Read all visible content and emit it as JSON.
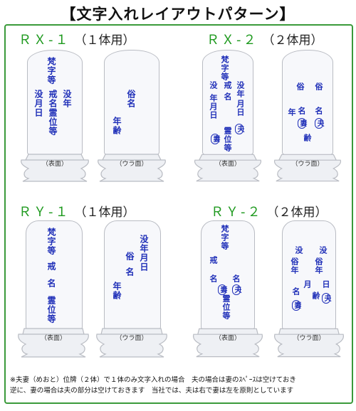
{
  "title": "【文字入れレイアウトパターン】",
  "patterns": [
    {
      "code": "ＲＸ-１",
      "count": "（１体用）"
    },
    {
      "code": "ＲＸ-２",
      "count": "（２体用）"
    },
    {
      "code": "ＲＹ-１",
      "count": "（１体用）"
    },
    {
      "code": "ＲＹ-２",
      "count": "（２体用）"
    }
  ],
  "face_labels": {
    "front": "（表面）",
    "back": "（ウラ面）"
  },
  "rx1_front": {
    "bonji": "梵字等",
    "c1": "没年",
    "c2": "戒名霊位等",
    "c3": "没月日"
  },
  "rx1_back": {
    "c1": "俗名",
    "c2": "年齢"
  },
  "rx2_front": {
    "bonji": "梵字等",
    "c1": "没年",
    "c1b": "月日",
    "c2": "戒",
    "c2b": "名",
    "c2c": "霊位等",
    "c3": "戒",
    "c3b": "名",
    "c4": "没",
    "c4b": "年月日",
    "wrap_h": "夫",
    "wrap_w": "妻"
  },
  "rx2_back": {
    "c1": "俗",
    "c1b": "名",
    "c1c": "齢",
    "c2": "俗",
    "c2b": "年",
    "c2c": "名",
    "wrap_h": "夫",
    "wrap_w": "妻"
  },
  "ry1_front": {
    "bonji": "梵字等",
    "c1": "戒名",
    "c2": "霊位等"
  },
  "ry1_back": {
    "c1": "没年月日",
    "c2": "俗名",
    "c3": "年齢"
  },
  "ry2_front": {
    "bonji": "梵字等",
    "c1": "戒",
    "c2": "名",
    "c3": "霊位等",
    "c4": "名",
    "wrap_h": "夫",
    "wrap_w": "妻"
  },
  "ry2_back": {
    "c1": "没",
    "c2": "俗年",
    "c3": "没",
    "c4": "俗年",
    "c5": "名",
    "c6": "月",
    "c7": "日",
    "c8": "齢",
    "wrap_h": "夫",
    "wrap_w": "妻"
  },
  "note": {
    "line1": "※夫妻（めおと）位牌（２体）で１体のみ文字入れの場合　夫の場合は妻のｽﾍﾟｰｽは空けておき",
    "line2": "逆に、妻の場合は夫の部分は空けておきます　当社では、夫は右で妻は左を原則としています"
  }
}
